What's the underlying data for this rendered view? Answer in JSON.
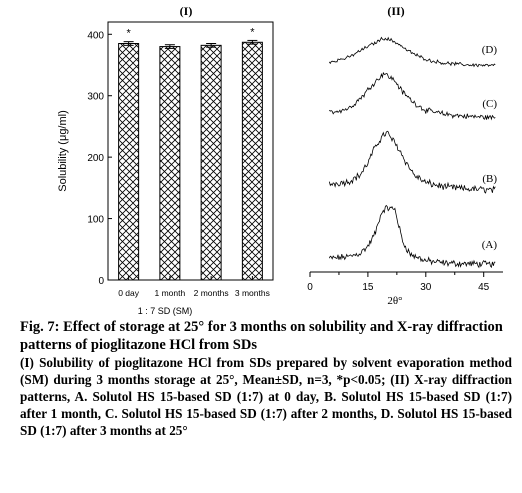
{
  "chart_data": [
    {
      "type": "bar",
      "panel_label": "(I)",
      "categories": [
        "0 day",
        "1 month",
        "2 months",
        "3 months"
      ],
      "values": [
        385,
        380,
        382,
        387
      ],
      "errors": [
        3,
        3,
        3,
        3
      ],
      "significance": [
        "*",
        "",
        "",
        "*"
      ],
      "ylabel": "Solubility (μg/ml)",
      "xlabel": "1 : 7 SD (SM)",
      "ylim": [
        0,
        420
      ],
      "yticks": [
        0,
        100,
        200,
        300,
        400
      ],
      "pattern": "crosshatch"
    },
    {
      "type": "line",
      "panel_label": "(II)",
      "xlabel": "2θ°",
      "xlim": [
        0,
        50
      ],
      "xticks": [
        0,
        15,
        30,
        45
      ],
      "series": [
        {
          "name": "(A)",
          "label": "(A)",
          "peak_at": 21,
          "profile": [
            [
              5,
              0.13
            ],
            [
              10,
              0.16
            ],
            [
              13,
              0.22
            ],
            [
              15,
              0.34
            ],
            [
              17,
              0.58
            ],
            [
              18,
              0.82
            ],
            [
              19,
              0.97
            ],
            [
              20,
              1.0
            ],
            [
              21,
              0.99
            ],
            [
              22,
              0.98
            ],
            [
              23,
              0.7
            ],
            [
              24,
              0.42
            ],
            [
              26,
              0.2
            ],
            [
              30,
              0.09
            ],
            [
              35,
              0.05
            ],
            [
              40,
              0.04
            ],
            [
              48,
              0.03
            ]
          ]
        },
        {
          "name": "(B)",
          "label": "(B)",
          "peak_at": 20,
          "profile": [
            [
              5,
              0.15
            ],
            [
              10,
              0.19
            ],
            [
              13,
              0.3
            ],
            [
              15,
              0.5
            ],
            [
              17,
              0.78
            ],
            [
              19,
              0.97
            ],
            [
              20,
              1.0
            ],
            [
              21,
              0.92
            ],
            [
              23,
              0.74
            ],
            [
              25,
              0.5
            ],
            [
              27,
              0.3
            ],
            [
              30,
              0.17
            ],
            [
              35,
              0.1
            ],
            [
              40,
              0.07
            ],
            [
              48,
              0.05
            ]
          ]
        },
        {
          "name": "(C)",
          "label": "(C)",
          "peak_at": 19,
          "profile": [
            [
              5,
              0.18
            ],
            [
              10,
              0.26
            ],
            [
              12,
              0.4
            ],
            [
              14,
              0.55
            ],
            [
              16,
              0.75
            ],
            [
              18,
              0.9
            ],
            [
              19,
              1.0
            ],
            [
              20,
              0.95
            ],
            [
              22,
              0.84
            ],
            [
              24,
              0.6
            ],
            [
              27,
              0.38
            ],
            [
              30,
              0.22
            ],
            [
              35,
              0.14
            ],
            [
              40,
              0.1
            ],
            [
              48,
              0.07
            ]
          ]
        },
        {
          "name": "(D)",
          "label": "(D)",
          "peak_at": 19,
          "profile": [
            [
              5,
              0.2
            ],
            [
              10,
              0.35
            ],
            [
              12,
              0.5
            ],
            [
              15,
              0.72
            ],
            [
              17,
              0.85
            ],
            [
              19,
              1.0
            ],
            [
              21,
              0.93
            ],
            [
              23,
              0.8
            ],
            [
              25,
              0.6
            ],
            [
              28,
              0.4
            ],
            [
              31,
              0.25
            ],
            [
              35,
              0.16
            ],
            [
              40,
              0.11
            ],
            [
              48,
              0.08
            ]
          ]
        }
      ]
    }
  ],
  "caption": {
    "title": "Fig. 7: Effect of storage at 25° for 3 months on solubility and X-ray diffraction patterns of pioglitazone HCl from SDs",
    "description": "(I) Solubility of pioglitazone HCl from SDs prepared by solvent evaporation method (SM) during 3 months storage at 25°, Mean±SD, n=3, *p<0.05; (II) X-ray diffraction patterns, A. Solutol HS 15-based SD (1:7) at 0 day, B. Solutol HS 15-based SD (1:7) after 1 month, C. Solutol HS 15-based SD (1:7) after 2 months, D. Solutol HS 15-based SD (1:7) after 3 months at 25°"
  }
}
